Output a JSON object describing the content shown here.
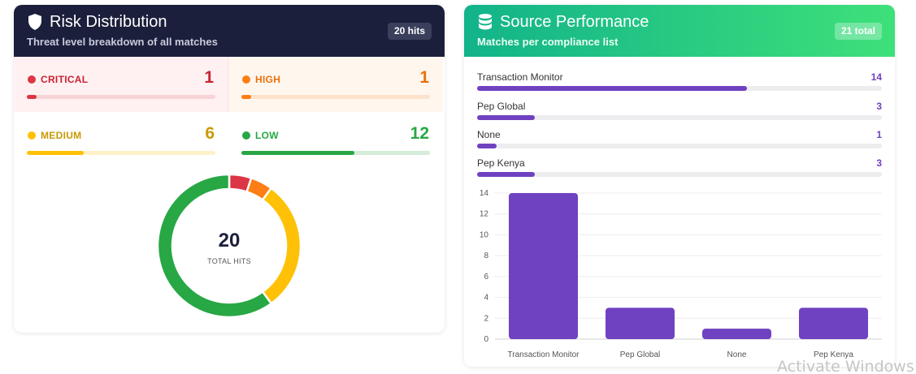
{
  "risk": {
    "title": "Risk Distribution",
    "subtitle": "Threat level breakdown of all matches",
    "badge": "20 hits",
    "icon": "shield-icon",
    "levels": [
      {
        "label": "CRITICAL",
        "count": "1",
        "value": 1,
        "color": "#dc3545",
        "track": "#f7d3d6",
        "text_color": "#c82333"
      },
      {
        "label": "HIGH",
        "count": "1",
        "value": 1,
        "color": "#fd7e14",
        "track": "#fde2c9",
        "text_color": "#e8710a"
      },
      {
        "label": "MEDIUM",
        "count": "6",
        "value": 6,
        "color": "#ffc107",
        "track": "#fff1c7",
        "text_color": "#c99a06"
      },
      {
        "label": "LOW",
        "count": "12",
        "value": 12,
        "color": "#28a745",
        "track": "#d4ecd9",
        "text_color": "#28a745"
      }
    ],
    "total": "20",
    "total_label": "TOTAL HITS"
  },
  "source": {
    "title": "Source Performance",
    "subtitle": "Matches per compliance list",
    "badge": "21 total",
    "icon": "database-icon",
    "max": 14,
    "items": [
      {
        "name": "Transaction Monitor",
        "count": "14",
        "value": 14
      },
      {
        "name": "Pep Global",
        "count": "3",
        "value": 3
      },
      {
        "name": "None",
        "count": "1",
        "value": 1
      },
      {
        "name": "Pep Kenya",
        "count": "3",
        "value": 3
      }
    ]
  },
  "chart_data": {
    "type": "bar",
    "categories": [
      "Transaction Monitor",
      "Pep Global",
      "None",
      "Pep Kenya"
    ],
    "values": [
      14,
      3,
      1,
      3
    ],
    "ylim": [
      0,
      14
    ],
    "yticks": [
      0,
      2,
      4,
      6,
      8,
      10,
      12,
      14
    ],
    "color": "#6f42c1",
    "grid": true
  },
  "watermark": "Activate Windows"
}
